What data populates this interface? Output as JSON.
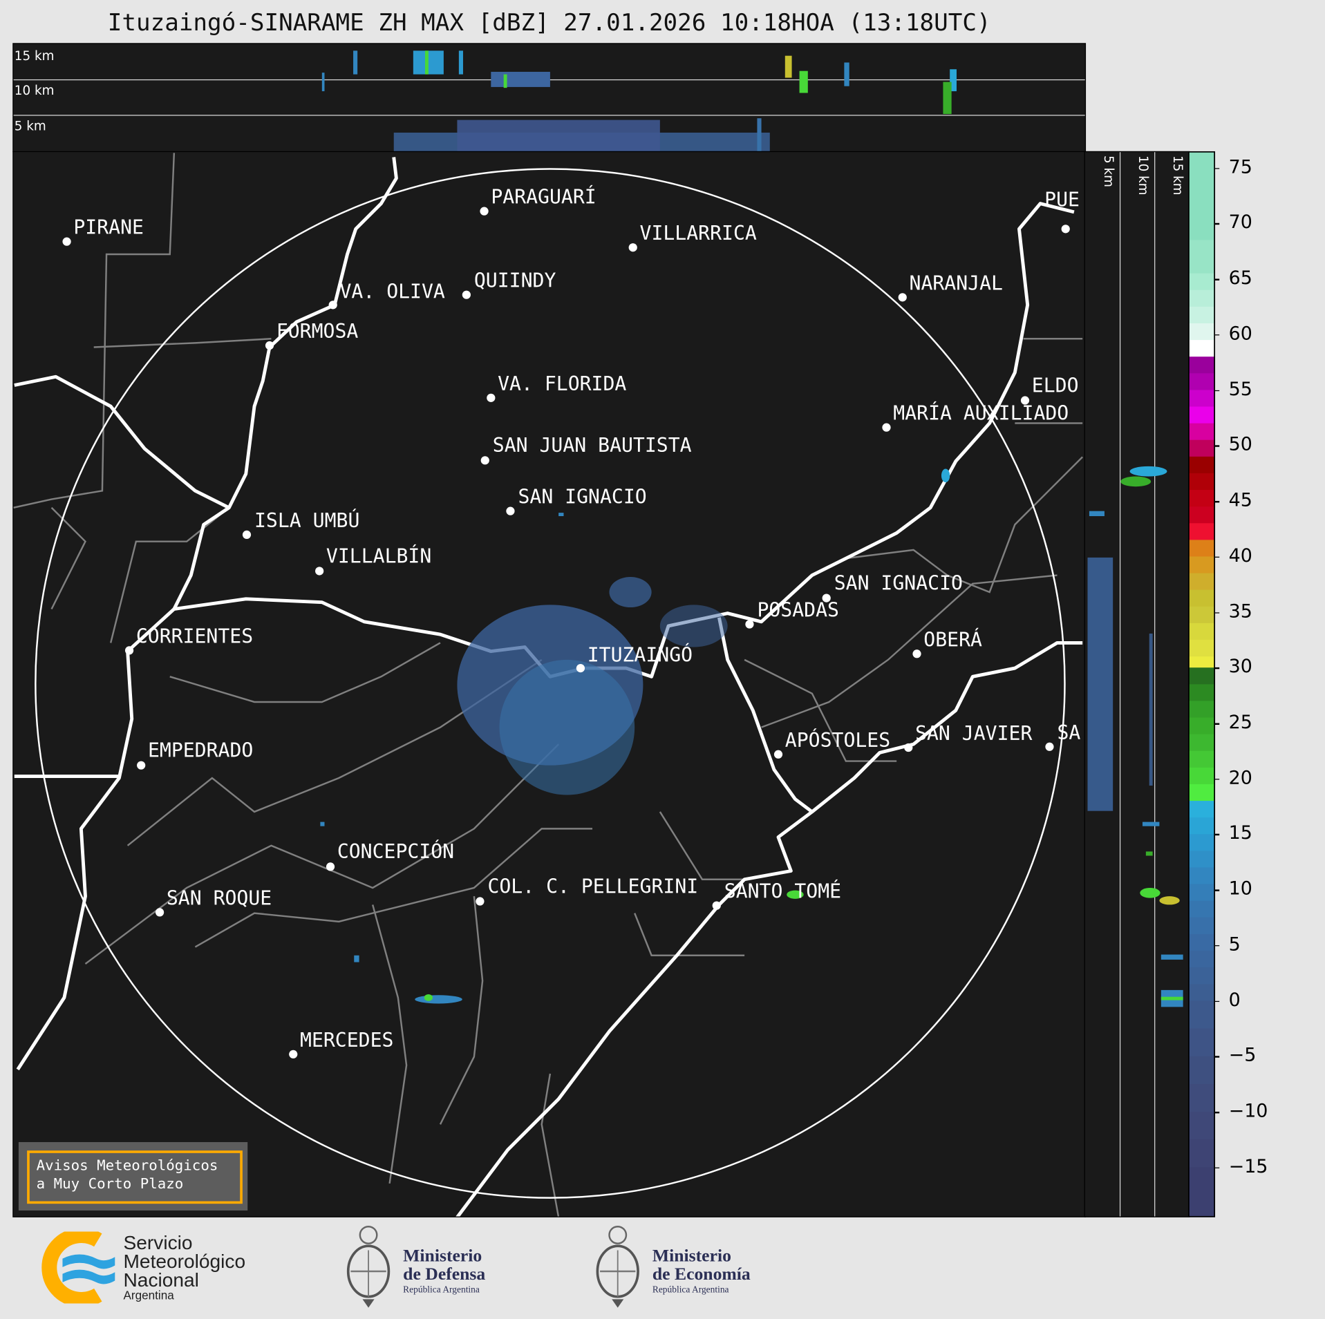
{
  "title": "Ituzaingó-SINARAME ZH MAX [dBZ] 27.01.2026 10:18HOA (13:18UTC)",
  "top_panel": {
    "levels": [
      "15 km",
      "10 km",
      "5 km"
    ]
  },
  "side_panel": {
    "levels": [
      "5 km",
      "10 km",
      "15 km"
    ]
  },
  "cities": [
    {
      "name": "PIRANE"
    },
    {
      "name": "PARAGUARÍ"
    },
    {
      "name": "VILLARRICA"
    },
    {
      "name": "QUIINDY"
    },
    {
      "name": "VA. OLIVA"
    },
    {
      "name": "FORMOSA"
    },
    {
      "name": "NARANJAL"
    },
    {
      "name": "VA. FLORIDA"
    },
    {
      "name": "ELDO"
    },
    {
      "name": "MARÍA AUXILIADO"
    },
    {
      "name": "SAN JUAN BAUTISTA"
    },
    {
      "name": "SAN IGNACIO"
    },
    {
      "name": "ISLA UMBÚ"
    },
    {
      "name": "VILLALBÍN"
    },
    {
      "name": "SAN IGNACIO"
    },
    {
      "name": "POSADAS"
    },
    {
      "name": "CORRIENTES"
    },
    {
      "name": "ITUZAINGÓ"
    },
    {
      "name": "OBERÁ"
    },
    {
      "name": "APÓSTOLES"
    },
    {
      "name": "SAN JAVIER"
    },
    {
      "name": "SA"
    },
    {
      "name": "EMPEDRADO"
    },
    {
      "name": "CONCEPCIÓN"
    },
    {
      "name": "COL. C. PELLEGRINI"
    },
    {
      "name": "SANTO TOMÉ"
    },
    {
      "name": "SAN ROQUE"
    },
    {
      "name": "MERCEDES"
    },
    {
      "name": "PUE"
    }
  ],
  "colorbar": {
    "unit": "dBZ",
    "range": [
      -19.5,
      76.5
    ],
    "ticks": [
      "75",
      "70",
      "65",
      "60",
      "55",
      "50",
      "45",
      "40",
      "35",
      "30",
      "25",
      "20",
      "15",
      "10",
      "5",
      "0",
      "−5",
      "−10",
      "−15"
    ],
    "bins": [
      [
        68.5,
        76.5,
        "#8adfbf"
      ],
      [
        65.5,
        68.5,
        "#98e4c6"
      ],
      [
        64,
        65.5,
        "#a8ebd0"
      ],
      [
        62.5,
        64,
        "#b8eed9"
      ],
      [
        61,
        62.5,
        "#c8f2e2"
      ],
      [
        59.5,
        61,
        "#e0f6ee"
      ],
      [
        58,
        59.5,
        "#ffffff"
      ],
      [
        56.5,
        58,
        "#9a009c"
      ],
      [
        55,
        56.5,
        "#b000b0"
      ],
      [
        53.5,
        55,
        "#cc00cc"
      ],
      [
        52,
        53.5,
        "#ea00ea"
      ],
      [
        50.5,
        52,
        "#d800a0"
      ],
      [
        49,
        50.5,
        "#c0005c"
      ],
      [
        47.5,
        49,
        "#9a0000"
      ],
      [
        46,
        47.5,
        "#b00008"
      ],
      [
        44.5,
        46,
        "#c40014"
      ],
      [
        43,
        44.5,
        "#cc0020"
      ],
      [
        41.5,
        43,
        "#ee1030"
      ],
      [
        40,
        41.5,
        "#dd8018"
      ],
      [
        38.5,
        40,
        "#d89a20"
      ],
      [
        37,
        38.5,
        "#cfae2c"
      ],
      [
        35.5,
        37,
        "#c8c030"
      ],
      [
        34,
        35.5,
        "#ccc838"
      ],
      [
        32.5,
        34,
        "#d8d83c"
      ],
      [
        31,
        32.5,
        "#e0e040"
      ],
      [
        30,
        31,
        "#ecec40"
      ],
      [
        28.5,
        30,
        "#267020"
      ],
      [
        27,
        28.5,
        "#2c8a22"
      ],
      [
        25.5,
        27,
        "#33a028"
      ],
      [
        24,
        25.5,
        "#38ad2a"
      ],
      [
        22.5,
        24,
        "#3db830"
      ],
      [
        21,
        22.5,
        "#44c835"
      ],
      [
        19.5,
        21,
        "#48d838"
      ],
      [
        18,
        19.5,
        "#50ec40"
      ],
      [
        16.5,
        18,
        "#2ab0dc"
      ],
      [
        15,
        16.5,
        "#2aa5d6"
      ],
      [
        13.5,
        15,
        "#2c9ad0"
      ],
      [
        12,
        13.5,
        "#2f90c8"
      ],
      [
        10.5,
        12,
        "#3286c0"
      ],
      [
        9,
        10.5,
        "#347eb8"
      ],
      [
        7.5,
        9,
        "#3676b0"
      ],
      [
        6,
        7.5,
        "#3870aa"
      ],
      [
        4.5,
        6,
        "#396aa4"
      ],
      [
        3,
        4.5,
        "#3a669e"
      ],
      [
        1.5,
        3,
        "#3b6298"
      ],
      [
        0,
        1.5,
        "#3c5e92"
      ],
      [
        -2.5,
        0,
        "#3d598c"
      ],
      [
        -5,
        -2.5,
        "#3e5486"
      ],
      [
        -7.5,
        -5,
        "#3e5080"
      ],
      [
        -10,
        -7.5,
        "#3f4c7c"
      ],
      [
        -12.5,
        -10,
        "#3f4878"
      ],
      [
        -15,
        -12.5,
        "#3e4474"
      ],
      [
        -19.5,
        -15,
        "#3c4070"
      ]
    ]
  },
  "warning_link": {
    "line1": "Avisos Meteorológicos",
    "line2": "a Muy Corto Plazo"
  },
  "logos": {
    "smn": {
      "l1": "Servicio",
      "l2": "Meteorológico",
      "l3": "Nacional",
      "l4": "Argentina"
    },
    "defensa": {
      "l1": "Ministerio",
      "l2": "de Defensa",
      "l3": "República Argentina"
    },
    "economia": {
      "l1": "Ministerio",
      "l2": "de Economía",
      "l3": "República Argentina"
    }
  },
  "colors": {
    "background": "#e6e6e6",
    "map": "#1a1a1a",
    "warning_border": "#ffaa00",
    "smn_orange": "#ffb000",
    "smn_blue": "#2ea3e0",
    "ministry_navy": "#2b2f55"
  }
}
